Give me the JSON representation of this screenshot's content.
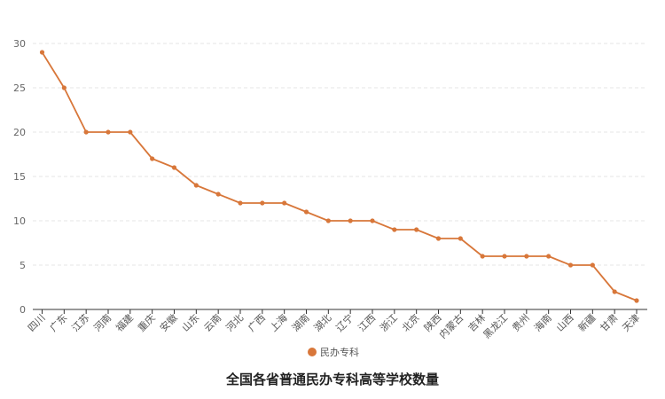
{
  "chart_data": {
    "type": "line",
    "title": "全国各省普通民办专科高等学校数量",
    "xlabel": "",
    "ylabel": "",
    "ylim": [
      0,
      30
    ],
    "yticks": [
      0,
      5,
      10,
      15,
      20,
      25,
      30
    ],
    "grid": true,
    "legend_position": "bottom",
    "categories": [
      "四川",
      "广东",
      "江苏",
      "河南",
      "福建",
      "重庆",
      "安徽",
      "山东",
      "云南",
      "河北",
      "广西",
      "上海",
      "湖南",
      "湖北",
      "辽宁",
      "江西",
      "浙江",
      "北京",
      "陕西",
      "内蒙古",
      "吉林",
      "黑龙江",
      "贵州",
      "海南",
      "山西",
      "新疆",
      "甘肃",
      "天津"
    ],
    "series": [
      {
        "name": "民办专科",
        "color": "#d8773a",
        "values": [
          29,
          25,
          20,
          20,
          20,
          17,
          16,
          14,
          13,
          12,
          12,
          12,
          11,
          10,
          10,
          10,
          9,
          9,
          8,
          8,
          6,
          6,
          6,
          6,
          5,
          5,
          2,
          1
        ]
      }
    ]
  }
}
